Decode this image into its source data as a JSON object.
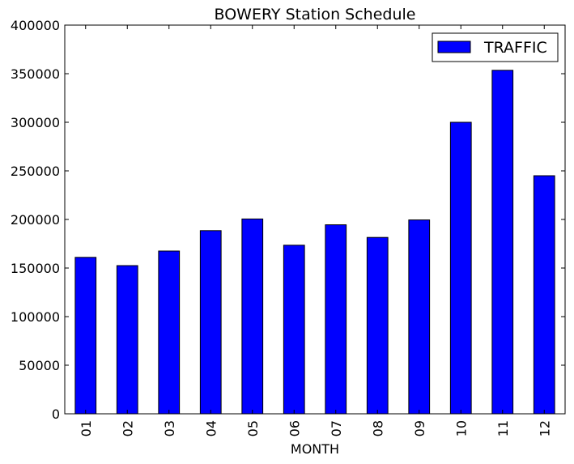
{
  "chart_data": {
    "type": "bar",
    "title": "BOWERY Station Schedule",
    "xlabel": "MONTH",
    "ylabel": "",
    "categories": [
      "01",
      "02",
      "03",
      "04",
      "05",
      "06",
      "07",
      "08",
      "09",
      "10",
      "11",
      "12"
    ],
    "series": [
      {
        "name": "TRAFFIC",
        "values": [
          161000,
          152500,
          167500,
          188500,
          200500,
          173500,
          194500,
          181500,
          199500,
          300000,
          353500,
          245000
        ]
      }
    ],
    "ylim": [
      0,
      400000
    ],
    "yticks": [
      "0",
      "50000",
      "100000",
      "150000",
      "200000",
      "250000",
      "300000",
      "350000",
      "400000"
    ],
    "grid": false,
    "legend_position": "top-right",
    "colors": {
      "bar": "#0000ff",
      "edge": "#000000"
    }
  }
}
